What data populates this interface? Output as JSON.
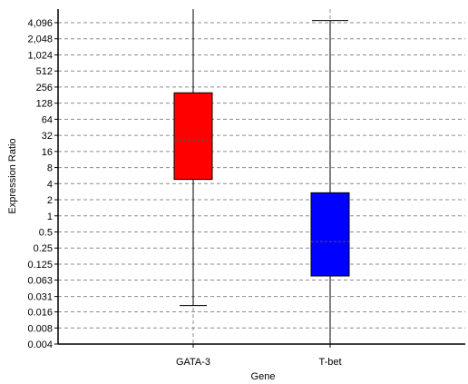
{
  "chart_data": {
    "type": "box",
    "xlabel": "Gene",
    "ylabel": "Expression Ratio",
    "yscale": "log2",
    "ylim": [
      0.004,
      8192
    ],
    "y_tick_labels": [
      "0.004",
      "0.008",
      "0.016",
      "0.031",
      "0.063",
      "0.125",
      "0.25",
      "0.5",
      "1",
      "2",
      "4",
      "8",
      "16",
      "32",
      "64",
      "128",
      "256",
      "512",
      "1,024",
      "2,048",
      "4,096"
    ],
    "y_tick_values": [
      0.004,
      0.008,
      0.016,
      0.031,
      0.063,
      0.125,
      0.25,
      0.5,
      1,
      2,
      4,
      8,
      16,
      32,
      64,
      128,
      256,
      512,
      1024,
      2048,
      4096
    ],
    "grid": "horizontal-dashed",
    "categories": [
      "GATA-3",
      "T-bet"
    ],
    "boxes": [
      {
        "category": "GATA-3",
        "color": "#ff0000",
        "whisker_low": 0.021,
        "q1": 4.8,
        "median": 26,
        "q3": 200,
        "whisker_high": 8192
      },
      {
        "category": "T-bet",
        "color": "#0000ff",
        "whisker_low": 0.004,
        "q1": 0.075,
        "median": 0.33,
        "q3": 2.7,
        "whisker_high": 4500
      }
    ]
  }
}
